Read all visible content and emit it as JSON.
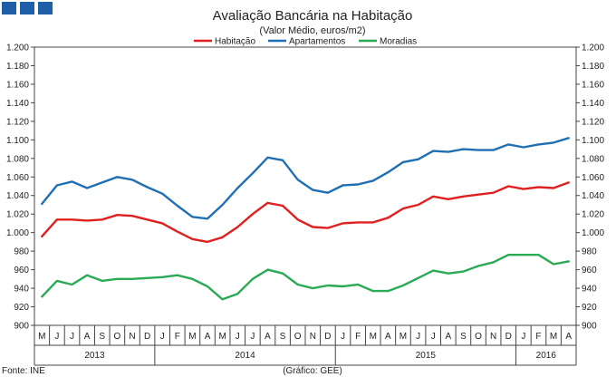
{
  "chart_data": {
    "type": "line",
    "title": "Avaliação Bancária na Habitação",
    "subtitle": "(Valor Médio, euros/m2)",
    "legend_position": "top",
    "grid": false,
    "ylim": [
      900,
      1200
    ],
    "yticks": [
      "900",
      "920",
      "940",
      "960",
      "980",
      "1.000",
      "1.020",
      "1.040",
      "1.060",
      "1.080",
      "1.100",
      "1.120",
      "1.140",
      "1.160",
      "1.180",
      "1.200"
    ],
    "months": [
      "M",
      "J",
      "J",
      "A",
      "S",
      "O",
      "N",
      "D",
      "J",
      "F",
      "M",
      "A",
      "M",
      "J",
      "J",
      "A",
      "S",
      "O",
      "N",
      "D",
      "J",
      "F",
      "M",
      "A",
      "M",
      "J",
      "J",
      "A",
      "S",
      "O",
      "N",
      "D",
      "J",
      "F",
      "M",
      "A"
    ],
    "years": [
      {
        "label": "2013",
        "start": 0,
        "count": 8
      },
      {
        "label": "2014",
        "start": 8,
        "count": 12
      },
      {
        "label": "2015",
        "start": 20,
        "count": 12
      },
      {
        "label": "2016",
        "start": 32,
        "count": 4
      }
    ],
    "series": [
      {
        "name": "Habitação",
        "color": "#e02020",
        "values": [
          996,
          1014,
          1014,
          1013,
          1014,
          1019,
          1018,
          1014,
          1010,
          1001,
          993,
          990,
          995,
          1006,
          1020,
          1032,
          1029,
          1014,
          1006,
          1005,
          1010,
          1011,
          1011,
          1016,
          1026,
          1030,
          1039,
          1036,
          1039,
          1041,
          1043,
          1050,
          1047,
          1049,
          1048,
          1054
        ]
      },
      {
        "name": "Apartamentos",
        "color": "#1f6fb5",
        "values": [
          1031,
          1051,
          1055,
          1048,
          1054,
          1060,
          1057,
          1049,
          1042,
          1029,
          1017,
          1015,
          1030,
          1048,
          1064,
          1081,
          1078,
          1057,
          1046,
          1043,
          1051,
          1052,
          1056,
          1065,
          1076,
          1079,
          1088,
          1087,
          1090,
          1089,
          1089,
          1095,
          1092,
          1095,
          1097,
          1102
        ]
      },
      {
        "name": "Moradias",
        "color": "#2aaa55",
        "values": [
          931,
          948,
          944,
          954,
          948,
          950,
          950,
          951,
          952,
          954,
          950,
          942,
          928,
          934,
          950,
          960,
          956,
          944,
          940,
          943,
          942,
          944,
          937,
          937,
          943,
          951,
          959,
          956,
          958,
          964,
          968,
          976,
          976,
          976,
          966,
          969
        ]
      }
    ]
  },
  "footer": {
    "source": "Fonte: INE",
    "credit": "(Gráfico: GEE)"
  }
}
